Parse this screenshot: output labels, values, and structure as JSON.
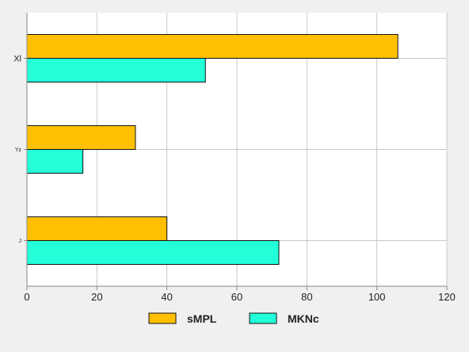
{
  "chart_data": {
    "type": "bar",
    "orientation": "horizontal",
    "categories": [
      "Xl",
      "Yz",
      "J"
    ],
    "series": [
      {
        "name": "sMPL",
        "color": "#ffc000",
        "values": [
          106,
          31,
          40
        ]
      },
      {
        "name": "MKNc",
        "color": "#22ffd9",
        "values": [
          51,
          16,
          72
        ]
      }
    ],
    "xlim": [
      0,
      120
    ],
    "xticks": [
      0,
      20,
      40,
      60,
      80,
      100,
      120
    ],
    "grid": true,
    "legend_position": "bottom-center",
    "title": "",
    "xlabel": "",
    "ylabel": ""
  }
}
